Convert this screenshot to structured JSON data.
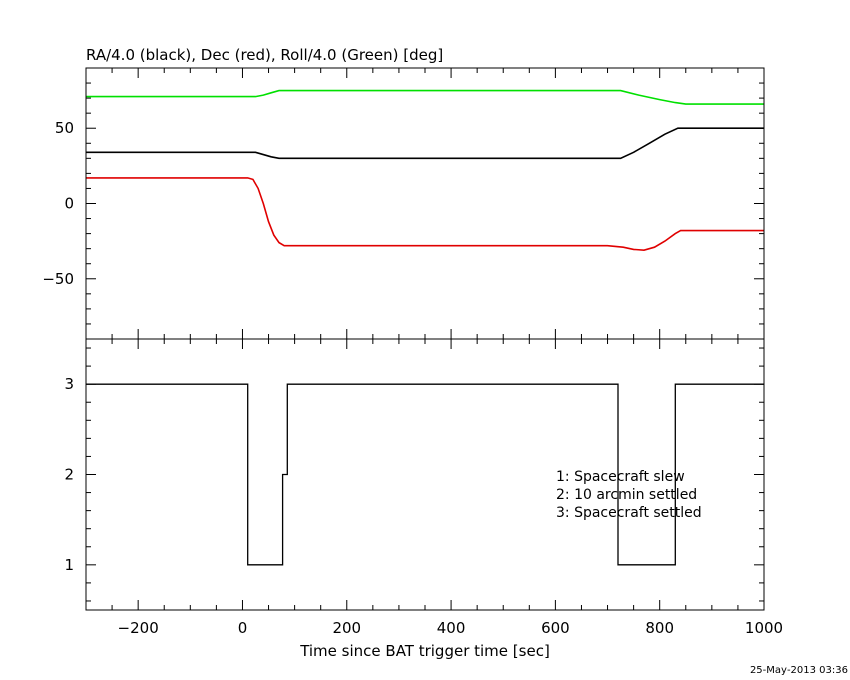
{
  "colors": {
    "ra": "#000000",
    "dec": "#e00000",
    "roll": "#00e000",
    "axis": "#000000"
  },
  "chart_data": [
    {
      "type": "line",
      "title": "RA/4.0 (black), Dec (red), Roll/4.0 (Green) [deg]",
      "xlim": [
        -300,
        1000
      ],
      "ylim": [
        -90,
        90
      ],
      "yticks": [
        50,
        0,
        -50
      ],
      "ytick_labels": [
        "50",
        "0",
        "−50"
      ],
      "series": [
        {
          "key": "ra",
          "x": [
            -300,
            10,
            25,
            35,
            45,
            55,
            70,
            80,
            200,
            400,
            600,
            725,
            750,
            780,
            810,
            835,
            900,
            1000
          ],
          "y": [
            34,
            34,
            34,
            33,
            32,
            31,
            30,
            30,
            30,
            30,
            30,
            30,
            34,
            40,
            46,
            50,
            50,
            50
          ]
        },
        {
          "key": "dec",
          "x": [
            -300,
            10,
            20,
            30,
            40,
            50,
            60,
            70,
            80,
            90,
            200,
            400,
            600,
            700,
            730,
            750,
            770,
            790,
            810,
            830,
            840,
            900,
            1000
          ],
          "y": [
            17,
            17,
            16,
            10,
            0,
            -12,
            -21,
            -26,
            -28,
            -28,
            -28,
            -28,
            -28,
            -28,
            -29,
            -30.5,
            -31,
            -29,
            -25,
            -20,
            -18,
            -18,
            -18
          ]
        },
        {
          "key": "roll",
          "x": [
            -300,
            10,
            25,
            40,
            55,
            70,
            80,
            200,
            400,
            600,
            725,
            760,
            800,
            830,
            850,
            1000
          ],
          "y": [
            71,
            71,
            71,
            72,
            73.5,
            75,
            75,
            75,
            75,
            75,
            75,
            72,
            69,
            67,
            66,
            66
          ]
        }
      ]
    },
    {
      "type": "line",
      "xlabel": "Time since BAT trigger time [sec]",
      "xlim": [
        -300,
        1000
      ],
      "ylim": [
        0.5,
        3.5
      ],
      "xticks": [
        -200,
        0,
        200,
        400,
        600,
        800,
        1000
      ],
      "xtick_labels": [
        "−200",
        "0",
        "200",
        "400",
        "600",
        "800",
        "1000"
      ],
      "yticks": [
        3,
        2,
        1
      ],
      "ytick_labels": [
        "3",
        "2",
        "1"
      ],
      "series": [
        {
          "key": "status",
          "x": [
            -300,
            10,
            10,
            77,
            77,
            86,
            86,
            720,
            720,
            830,
            830,
            1000
          ],
          "y": [
            3,
            3,
            1,
            1,
            2,
            2,
            3,
            3,
            1,
            1,
            3,
            3
          ]
        }
      ],
      "legend": {
        "placement": "right",
        "entries": [
          "1: Spacecraft slew",
          "2: 10 arcmin settled",
          "3: Spacecraft settled"
        ]
      }
    }
  ],
  "footer": {
    "timestamp": "25‑May‑2013 03:36"
  }
}
